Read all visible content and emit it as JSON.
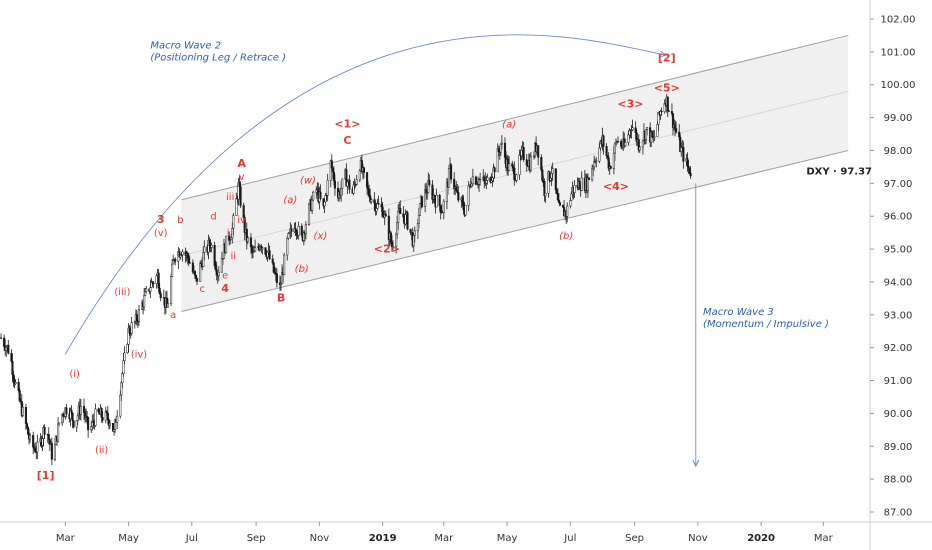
{
  "chart_data": {
    "type": "candlestick",
    "symbol": "DXY",
    "last_price": "97.37",
    "ylim": [
      86.6,
      102.6
    ],
    "y_ticks": [
      "87.00",
      "88.00",
      "89.00",
      "90.00",
      "91.00",
      "92.00",
      "93.00",
      "94.00",
      "95.00",
      "96.00",
      "97.00",
      "98.00",
      "99.00",
      "100.00",
      "101.00",
      "102.00"
    ],
    "x_ticks": [
      {
        "label": "Mar",
        "date": "2018-03-01",
        "bold": false
      },
      {
        "label": "May",
        "date": "2018-05-01",
        "bold": false
      },
      {
        "label": "Jul",
        "date": "2018-07-01",
        "bold": false
      },
      {
        "label": "Sep",
        "date": "2018-09-01",
        "bold": false
      },
      {
        "label": "Nov",
        "date": "2018-11-01",
        "bold": false
      },
      {
        "label": "2019",
        "date": "2019-01-01",
        "bold": true
      },
      {
        "label": "Mar",
        "date": "2019-03-01",
        "bold": false
      },
      {
        "label": "May",
        "date": "2019-05-01",
        "bold": false
      },
      {
        "label": "Jul",
        "date": "2019-07-01",
        "bold": false
      },
      {
        "label": "Sep",
        "date": "2019-09-01",
        "bold": false
      },
      {
        "label": "Nov",
        "date": "2019-11-01",
        "bold": false
      },
      {
        "label": "2020",
        "date": "2020-01-01",
        "bold": true
      },
      {
        "label": "Mar",
        "date": "2020-03-01",
        "bold": false
      }
    ],
    "x_range": [
      "2017-12-28",
      "2020-04-15"
    ],
    "price_path": [
      [
        "2017-12-29",
        92.3
      ],
      [
        "2018-01-06",
        91.9
      ],
      [
        "2018-01-13",
        90.7
      ],
      [
        "2018-01-20",
        89.9
      ],
      [
        "2018-01-27",
        89.0
      ],
      [
        "2018-02-03",
        88.9
      ],
      [
        "2018-02-10",
        89.7
      ],
      [
        "2018-02-17",
        88.6
      ],
      [
        "2018-02-24",
        89.9
      ],
      [
        "2018-03-03",
        90.2
      ],
      [
        "2018-03-10",
        89.7
      ],
      [
        "2018-03-17",
        90.3
      ],
      [
        "2018-03-24",
        89.4
      ],
      [
        "2018-03-31",
        90.0
      ],
      [
        "2018-04-07",
        89.9
      ],
      [
        "2018-04-14",
        89.8
      ],
      [
        "2018-04-17",
        89.4
      ],
      [
        "2018-04-24",
        91.0
      ],
      [
        "2018-05-01",
        92.5
      ],
      [
        "2018-05-08",
        92.8
      ],
      [
        "2018-05-15",
        93.4
      ],
      [
        "2018-05-22",
        93.9
      ],
      [
        "2018-05-29",
        94.2
      ],
      [
        "2018-06-01",
        93.7
      ],
      [
        "2018-06-07",
        93.2
      ],
      [
        "2018-06-14",
        94.8
      ],
      [
        "2018-06-21",
        95.0
      ],
      [
        "2018-06-28",
        94.7
      ],
      [
        "2018-07-05",
        94.0
      ],
      [
        "2018-07-12",
        94.8
      ],
      [
        "2018-07-19",
        95.2
      ],
      [
        "2018-07-26",
        94.3
      ],
      [
        "2018-08-02",
        95.1
      ],
      [
        "2018-08-09",
        95.6
      ],
      [
        "2018-08-15",
        96.9
      ],
      [
        "2018-08-22",
        95.4
      ],
      [
        "2018-08-29",
        94.8
      ],
      [
        "2018-09-05",
        95.2
      ],
      [
        "2018-09-12",
        94.9
      ],
      [
        "2018-09-19",
        94.2
      ],
      [
        "2018-09-24",
        93.8
      ],
      [
        "2018-10-01",
        95.2
      ],
      [
        "2018-10-08",
        95.8
      ],
      [
        "2018-10-15",
        95.3
      ],
      [
        "2018-10-22",
        96.2
      ],
      [
        "2018-10-29",
        96.8
      ],
      [
        "2018-11-05",
        96.2
      ],
      [
        "2018-11-12",
        97.6
      ],
      [
        "2018-11-19",
        96.6
      ],
      [
        "2018-11-26",
        97.2
      ],
      [
        "2018-12-03",
        96.7
      ],
      [
        "2018-12-10",
        97.6
      ],
      [
        "2018-12-17",
        96.8
      ],
      [
        "2018-12-24",
        96.4
      ],
      [
        "2019-01-01",
        96.2
      ],
      [
        "2019-01-10",
        95.1
      ],
      [
        "2019-01-17",
        96.1
      ],
      [
        "2019-01-24",
        95.9
      ],
      [
        "2019-01-31",
        95.2
      ],
      [
        "2019-02-07",
        96.4
      ],
      [
        "2019-02-14",
        96.9
      ],
      [
        "2019-02-21",
        96.5
      ],
      [
        "2019-02-28",
        96.2
      ],
      [
        "2019-03-07",
        97.4
      ],
      [
        "2019-03-14",
        96.6
      ],
      [
        "2019-03-21",
        96.2
      ],
      [
        "2019-03-28",
        97.2
      ],
      [
        "2019-04-04",
        97.1
      ],
      [
        "2019-04-11",
        97.0
      ],
      [
        "2019-04-18",
        97.4
      ],
      [
        "2019-04-25",
        98.2
      ],
      [
        "2019-05-02",
        97.5
      ],
      [
        "2019-05-09",
        97.3
      ],
      [
        "2019-05-16",
        97.9
      ],
      [
        "2019-05-23",
        97.6
      ],
      [
        "2019-05-30",
        98.2
      ],
      [
        "2019-06-06",
        96.8
      ],
      [
        "2019-06-13",
        97.4
      ],
      [
        "2019-06-20",
        96.2
      ],
      [
        "2019-06-27",
        96.1
      ],
      [
        "2019-07-03",
        96.8
      ],
      [
        "2019-07-10",
        97.0
      ],
      [
        "2019-07-17",
        97.0
      ],
      [
        "2019-07-24",
        97.7
      ],
      [
        "2019-08-01",
        98.3
      ],
      [
        "2019-08-08",
        97.5
      ],
      [
        "2019-08-15",
        98.3
      ],
      [
        "2019-08-22",
        98.1
      ],
      [
        "2019-08-29",
        98.8
      ],
      [
        "2019-09-05",
        98.2
      ],
      [
        "2019-09-12",
        98.6
      ],
      [
        "2019-09-19",
        98.3
      ],
      [
        "2019-09-26",
        99.2
      ],
      [
        "2019-10-01",
        99.6
      ],
      [
        "2019-10-08",
        98.9
      ],
      [
        "2019-10-15",
        98.1
      ],
      [
        "2019-10-22",
        97.5
      ],
      [
        "2019-10-25",
        97.37
      ]
    ],
    "channel": {
      "upper": [
        [
          "2018-06-21",
          96.5
        ],
        [
          "2020-03-25",
          101.5
        ]
      ],
      "middle": [
        [
          "2018-06-21",
          94.8
        ],
        [
          "2020-03-25",
          99.8
        ]
      ],
      "lower": [
        [
          "2018-06-21",
          93.1
        ],
        [
          "2020-03-25",
          98.0
        ]
      ]
    },
    "annotations": [
      {
        "text": "[1]",
        "date": "2018-02-10",
        "price": 88.0,
        "style": "red-bold"
      },
      {
        "text": "(i)",
        "date": "2018-03-10",
        "price": 91.1,
        "style": "red"
      },
      {
        "text": "(ii)",
        "date": "2018-04-05",
        "price": 88.8,
        "style": "red"
      },
      {
        "text": "(iii)",
        "date": "2018-04-25",
        "price": 93.6,
        "style": "red"
      },
      {
        "text": "(iv)",
        "date": "2018-05-11",
        "price": 91.7,
        "style": "red"
      },
      {
        "text": "(v)",
        "date": "2018-06-01",
        "price": 95.4,
        "style": "red"
      },
      {
        "text": "3",
        "date": "2018-06-01",
        "price": 95.8,
        "style": "red-bold"
      },
      {
        "text": "a",
        "date": "2018-06-13",
        "price": 92.9,
        "style": "red"
      },
      {
        "text": "b",
        "date": "2018-06-20",
        "price": 95.8,
        "style": "red"
      },
      {
        "text": "c",
        "date": "2018-07-11",
        "price": 93.7,
        "style": "red"
      },
      {
        "text": "d",
        "date": "2018-07-22",
        "price": 95.9,
        "style": "red"
      },
      {
        "text": "e",
        "date": "2018-08-02",
        "price": 94.1,
        "style": "red"
      },
      {
        "text": "4",
        "date": "2018-08-02",
        "price": 93.7,
        "style": "red-bold"
      },
      {
        "text": "i",
        "date": "2018-08-05",
        "price": 95.4,
        "style": "red"
      },
      {
        "text": "ii",
        "date": "2018-08-10",
        "price": 94.7,
        "style": "red"
      },
      {
        "text": "iii",
        "date": "2018-08-07",
        "price": 96.5,
        "style": "red"
      },
      {
        "text": "iv",
        "date": "2018-08-18",
        "price": 95.8,
        "style": "red"
      },
      {
        "text": "v",
        "date": "2018-08-18",
        "price": 97.1,
        "style": "red"
      },
      {
        "text": "A",
        "date": "2018-08-18",
        "price": 97.5,
        "style": "red-bold"
      },
      {
        "text": "B",
        "date": "2018-09-25",
        "price": 93.4,
        "style": "red-bold"
      },
      {
        "text": "(a)",
        "date": "2018-10-04",
        "price": 96.4,
        "style": "red-italic"
      },
      {
        "text": "(b)",
        "date": "2018-10-15",
        "price": 94.3,
        "style": "red-italic"
      },
      {
        "text": "(w)",
        "date": "2018-10-21",
        "price": 97.0,
        "style": "red-italic"
      },
      {
        "text": "(x)",
        "date": "2018-11-02",
        "price": 95.3,
        "style": "red-italic"
      },
      {
        "text": "<1>",
        "date": "2018-11-28",
        "price": 98.7,
        "style": "red-bold"
      },
      {
        "text": "C",
        "date": "2018-11-28",
        "price": 98.2,
        "style": "red-bold"
      },
      {
        "text": "<2>",
        "date": "2019-01-05",
        "price": 94.9,
        "style": "red-bold"
      },
      {
        "text": "(a)",
        "date": "2019-05-03",
        "price": 98.7,
        "style": "red-italic"
      },
      {
        "text": "(b)",
        "date": "2019-06-27",
        "price": 95.3,
        "style": "red-italic"
      },
      {
        "text": "<3>",
        "date": "2019-08-28",
        "price": 99.3,
        "style": "red-bold"
      },
      {
        "text": "<4>",
        "date": "2019-08-14",
        "price": 96.8,
        "style": "red-bold"
      },
      {
        "text": "<5>",
        "date": "2019-10-02",
        "price": 99.8,
        "style": "red-bold"
      },
      {
        "text": "[2]",
        "date": "2019-10-02",
        "price": 100.7,
        "style": "red-bold"
      }
    ],
    "macro_labels": [
      {
        "line1": "Macro Wave 2",
        "line2": "(Positioning Leg / Retrace )",
        "date": "2018-05-22",
        "price": 101.1
      },
      {
        "line1": "Macro Wave 3",
        "line2": "(Momentum / Impulsive )",
        "date": "2019-11-06",
        "price": 93.0
      }
    ],
    "arrows": {
      "arc": {
        "from": [
          "2018-03-01",
          91.8
        ],
        "control": [
          "2018-10-10",
          104.0
        ],
        "ctrl2": [
          "2019-07-01",
          101.5
        ],
        "to": [
          "2019-10-01",
          100.9
        ]
      },
      "down": {
        "from": [
          "2019-10-30",
          97.0
        ],
        "to": [
          "2019-10-30",
          88.4
        ]
      }
    },
    "colors": {
      "candle": "#1a1a1a",
      "channel_line": "#9e9e9e",
      "channel_fill": "#f0f0f0",
      "annotation_red": "#e53935",
      "arrow_blue": "#6a8cc8",
      "label_blue": "#2e5ea8"
    }
  }
}
